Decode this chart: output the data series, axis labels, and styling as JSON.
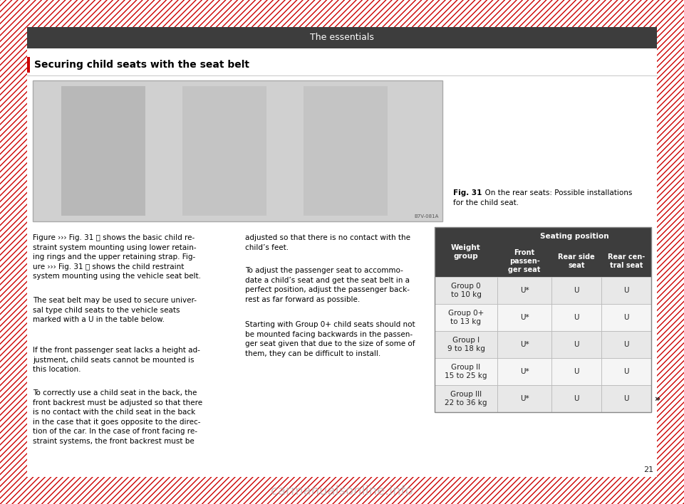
{
  "page_title": "The essentials",
  "section_title": "Securing child seats with the seat belt",
  "page_number": "21",
  "fig_caption_bold": "Fig. 31",
  "fig_caption_rest": "  On the rear seats: Possible installations\nfor the child seat.",
  "table_header_main": "Seating position",
  "table_header_weight": "Weight\ngroup",
  "table_sub_headers": [
    "Front\npassen-\nger seat",
    "Rear side\nseat",
    "Rear cen-\ntral seat"
  ],
  "table_rows": [
    [
      "Group 0\nto 10 kg",
      "U*",
      "U",
      "U"
    ],
    [
      "Group 0+\nto 13 kg",
      "U*",
      "U",
      "U"
    ],
    [
      "Group I\n9 to 18 kg",
      "U*",
      "U",
      "U"
    ],
    [
      "Group II\n15 to 25 kg",
      "U*",
      "U",
      "U"
    ],
    [
      "Group III\n22 to 36 kg",
      "U*",
      "U",
      "U"
    ]
  ],
  "header_bg": "#3d3d3d",
  "header_text_color": "#ffffff",
  "row_bg_odd": "#e8e8e8",
  "row_bg_even": "#f5f5f5",
  "title_bar_color": "#3d3d3d",
  "section_bar_color": "#cc0000",
  "body_bg": "#ffffff",
  "hatch_color": "#cc0000",
  "hatch_bg": "#ffffff",
  "image_placeholder_color": "#d0d0d0",
  "note_symbol": "»",
  "left_col_paragraphs": [
    "Figure ››› Fig. 31 Ⓐ shows the basic child re-\nstraint system mounting using lower retain-\ning rings and the upper retaining strap. Fig-\nure ››› Fig. 31 Ⓑ shows the child restraint\nsystem mounting using the vehicle seat belt.",
    "The seat belt may be used to secure univer-\nsal type child seats to the vehicle seats\nmarked with a U in the table below.",
    "If the front passenger seat lacks a height ad-\njustment, child seats cannot be mounted is\nthis location.",
    "To correctly use a child seat in the back, the\nfront backrest must be adjusted so that there\nis no contact with the child seat in the back\nin the case that it goes opposite to the direc-\ntion of the car. In the case of front facing re-\nstraint systems, the front backrest must be"
  ],
  "right_col_paragraphs": [
    "adjusted so that there is no contact with the\nchild’s feet.",
    "To adjust the passenger seat to accommo-\ndate a child’s seat and get the seat belt in a\nperfect position, adjust the passenger back-\nrest as far forward as possible.",
    "Starting with Group 0+ child seats should not\nbe mounted facing backwards in the passen-\nger seat given that due to the size of some of\nthem, they can be difficult to install."
  ]
}
